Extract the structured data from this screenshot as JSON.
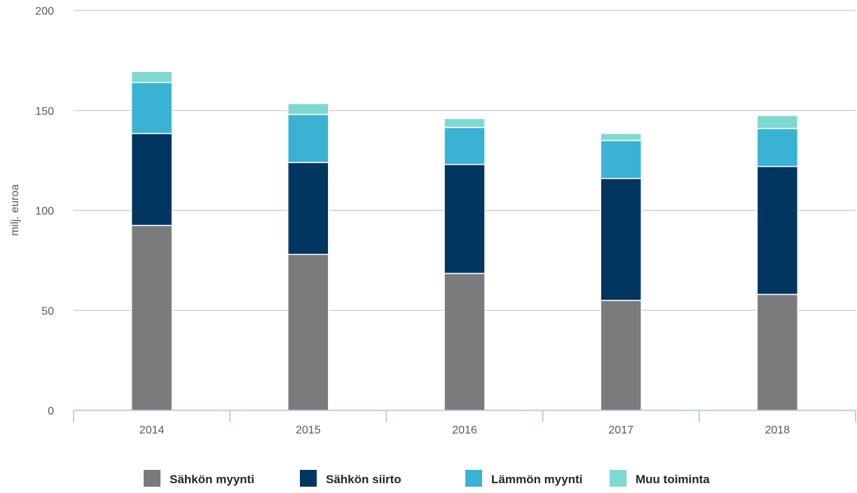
{
  "chart_data": {
    "type": "bar",
    "stacked": true,
    "categories": [
      "2014",
      "2015",
      "2016",
      "2017",
      "2018"
    ],
    "series": [
      {
        "name": "Sähkön myynti",
        "color": "#7b7b7d",
        "values": [
          92.5,
          78,
          68.5,
          55,
          58
        ]
      },
      {
        "name": "Sähkön siirto",
        "color": "#003660",
        "values": [
          46,
          46,
          54.5,
          61,
          64
        ]
      },
      {
        "name": "Lämmön myynti",
        "color": "#39b2d3",
        "values": [
          25.5,
          24,
          18.5,
          19,
          19
        ]
      },
      {
        "name": "Muu toiminta",
        "color": "#7fd8d2",
        "values": [
          5.5,
          5.5,
          4.5,
          3.5,
          6.5
        ]
      }
    ],
    "title": "",
    "xlabel": "",
    "ylabel": "milj. euroa",
    "ylim": [
      0,
      200
    ],
    "yticks": [
      0,
      50,
      100,
      150,
      200
    ],
    "grid": true,
    "legend_position": "bottom"
  }
}
